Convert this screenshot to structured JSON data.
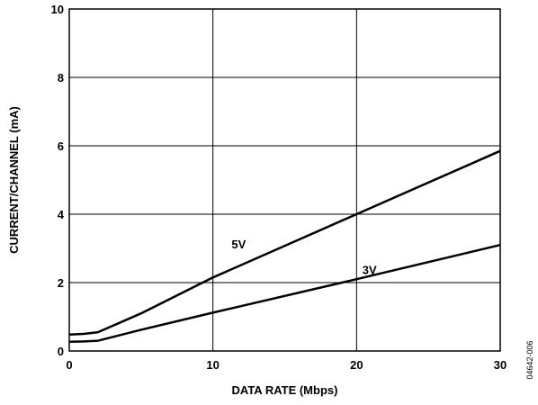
{
  "chart_data": {
    "type": "line",
    "title": "",
    "xlabel": "DATA RATE (Mbps)",
    "ylabel": "CURRENT/CHANNEL (mA)",
    "xlim": [
      0,
      30
    ],
    "ylim": [
      0,
      10
    ],
    "x_ticks": [
      0,
      10,
      20,
      30
    ],
    "y_ticks": [
      0,
      2,
      4,
      6,
      8,
      10
    ],
    "x_tick_labels": [
      "0",
      "10",
      "20",
      "30"
    ],
    "y_tick_labels": [
      "0",
      "2",
      "4",
      "6",
      "8",
      "10"
    ],
    "grid": true,
    "legend": "none (series labelled inline)",
    "figure_id": "04642-006",
    "series": [
      {
        "name": "5V",
        "color": "#000000",
        "x": [
          0,
          1,
          2,
          5,
          10,
          20,
          30
        ],
        "y": [
          0.48,
          0.5,
          0.55,
          1.1,
          2.15,
          4.0,
          5.85
        ]
      },
      {
        "name": "3V",
        "color": "#000000",
        "x": [
          0,
          1,
          2,
          5,
          10,
          20,
          30
        ],
        "y": [
          0.27,
          0.28,
          0.3,
          0.62,
          1.12,
          2.1,
          3.1
        ]
      }
    ]
  }
}
